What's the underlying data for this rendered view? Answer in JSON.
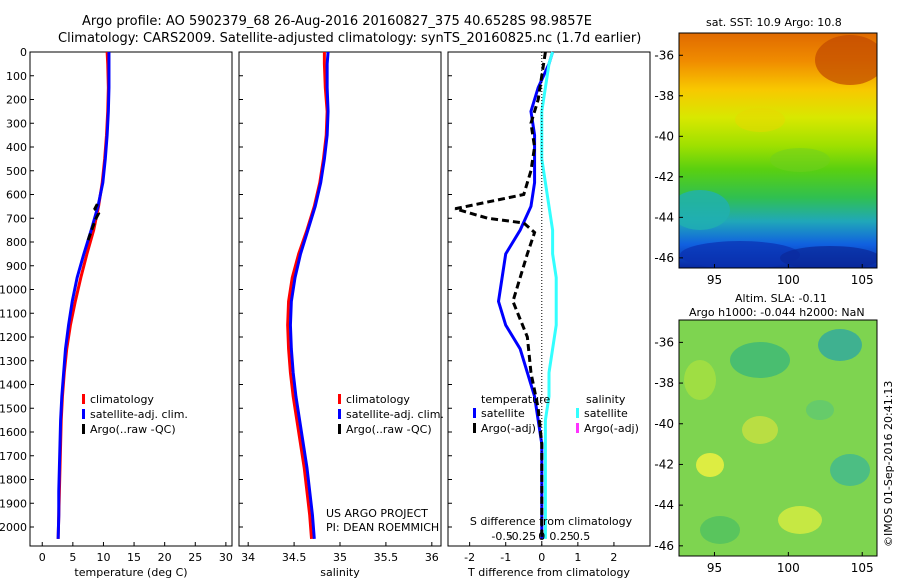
{
  "header": {
    "line1": "Argo profile: AO 5902379_68 26-Aug-2016 20160827_375 40.6528S 98.9857E",
    "line2": "Climatology: CARS2009. Satellite-adjusted climatology: synTS_20160825.nc (1.7d earlier)"
  },
  "colors": {
    "climatology": "#ff0000",
    "satellite": "#0000ff",
    "argo": "#000000",
    "salinity_satellite": "#33ffff",
    "salinity_argo": "#ff33ff"
  },
  "chart_data": [
    {
      "type": "line",
      "name": "temperature-profile",
      "xlabel": "temperature (deg C)",
      "xlim": [
        -2,
        31
      ],
      "xticks": [
        0,
        5,
        10,
        15,
        20,
        25,
        30
      ],
      "ylim": [
        2080,
        0
      ],
      "yticks": [
        0,
        100,
        200,
        300,
        400,
        500,
        600,
        700,
        800,
        900,
        1000,
        1100,
        1200,
        1300,
        1400,
        1500,
        1600,
        1700,
        1800,
        1900,
        2000
      ],
      "legend": [
        "climatology",
        "satellite-adj. clim.",
        "Argo(..raw -QC)"
      ],
      "series": [
        {
          "name": "climatology",
          "color": "#ff0000",
          "x": [
            10.6,
            10.7,
            10.8,
            10.7,
            10.5,
            10.2,
            9.8,
            9.2,
            8.4,
            7.3,
            6.3,
            5.4,
            4.6,
            4.0,
            3.6,
            3.3,
            3.1,
            3.0,
            2.9,
            2.8,
            2.7,
            2.6
          ],
          "y": [
            0,
            50,
            150,
            250,
            350,
            450,
            550,
            650,
            750,
            850,
            950,
            1050,
            1150,
            1250,
            1350,
            1450,
            1550,
            1650,
            1750,
            1850,
            1950,
            2050
          ]
        },
        {
          "name": "satellite-adj. clim.",
          "color": "#0000ff",
          "x": [
            10.9,
            10.9,
            10.9,
            10.8,
            10.6,
            10.3,
            9.9,
            9.1,
            8.0,
            6.8,
            5.7,
            4.9,
            4.3,
            3.8,
            3.5,
            3.2,
            3.0,
            2.9,
            2.8,
            2.7,
            2.7,
            2.6
          ],
          "y": [
            0,
            50,
            150,
            250,
            350,
            450,
            550,
            650,
            750,
            850,
            950,
            1050,
            1150,
            1250,
            1350,
            1450,
            1550,
            1650,
            1750,
            1850,
            1950,
            2050
          ]
        },
        {
          "name": "Argo(..raw -QC)",
          "color": "#000000",
          "x": [
            9.0,
            8.6,
            9.2,
            8.8,
            8.2,
            7.4
          ],
          "y": [
            640,
            660,
            680,
            700,
            740,
            800
          ]
        }
      ]
    },
    {
      "type": "line",
      "name": "salinity-profile",
      "xlabel": "salinity",
      "xlim": [
        33.9,
        36.1
      ],
      "xticks": [
        34,
        34.5,
        35,
        35.5,
        36
      ],
      "ylim": [
        2080,
        0
      ],
      "legend": [
        "climatology",
        "satellite-adj. clim.",
        "Argo(..raw -QC)"
      ],
      "series": [
        {
          "name": "climatology",
          "color": "#ff0000",
          "x": [
            34.83,
            34.83,
            34.84,
            34.86,
            34.85,
            34.82,
            34.78,
            34.72,
            34.64,
            34.55,
            34.48,
            34.44,
            34.43,
            34.44,
            34.46,
            34.49,
            34.53,
            34.57,
            34.61,
            34.64,
            34.67,
            34.69
          ],
          "y": [
            0,
            50,
            150,
            250,
            350,
            450,
            550,
            650,
            750,
            850,
            950,
            1050,
            1150,
            1250,
            1350,
            1450,
            1550,
            1650,
            1750,
            1850,
            1950,
            2050
          ]
        },
        {
          "name": "satellite-adj. clim.",
          "color": "#0000ff",
          "x": [
            34.87,
            34.86,
            34.86,
            34.87,
            34.86,
            34.83,
            34.79,
            34.73,
            34.65,
            34.57,
            34.51,
            34.47,
            34.46,
            34.47,
            34.49,
            34.52,
            34.56,
            34.6,
            34.64,
            34.67,
            34.7,
            34.72
          ],
          "y": [
            0,
            50,
            150,
            250,
            350,
            450,
            550,
            650,
            750,
            850,
            950,
            1050,
            1150,
            1250,
            1350,
            1450,
            1550,
            1650,
            1750,
            1850,
            1950,
            2050
          ]
        }
      ],
      "annotations": [
        "US ARGO PROJECT",
        "PI: DEAN ROEMMICH"
      ]
    },
    {
      "type": "line",
      "name": "difference-profile",
      "xlabel": "T difference from climatology",
      "x2label": "S difference from climatology",
      "xlim": [
        -2.6,
        3.0
      ],
      "xticks": [
        -2,
        -1,
        0,
        1,
        2
      ],
      "x2ticks": [
        "-0.5",
        "-0.25",
        "0",
        "0.25",
        "0.5"
      ],
      "ylim": [
        2080,
        0
      ],
      "legend_temperature": [
        "temperature",
        "satellite",
        "Argo(-adj)"
      ],
      "legend_salinity": [
        "salinity",
        "satellite",
        "Argo(-adj)"
      ],
      "series": [
        {
          "name": "temperature satellite",
          "color": "#0000ff",
          "x": [
            0.3,
            0.2,
            -0.1,
            -0.3,
            -0.2,
            -0.2,
            -0.2,
            -0.3,
            -0.6,
            -1.0,
            -1.1,
            -1.2,
            -1.0,
            -0.6,
            -0.4,
            -0.2,
            -0.1,
            0.0,
            0.0,
            0.0,
            0.0,
            0.0
          ],
          "y": [
            0,
            50,
            150,
            250,
            350,
            450,
            550,
            650,
            750,
            850,
            950,
            1050,
            1150,
            1250,
            1350,
            1450,
            1550,
            1650,
            1750,
            1850,
            1950,
            2050
          ]
        },
        {
          "name": "temperature Argo(-adj)",
          "color": "#000000",
          "x": [
            0.1,
            0.0,
            -0.1,
            -0.3,
            -0.2,
            -0.3,
            -0.5,
            -2.4,
            -1.5,
            -0.5,
            -0.2,
            -0.4,
            -0.6,
            -0.8,
            -0.4,
            -0.3,
            -0.1,
            0.0,
            0.0,
            0.0,
            0.0
          ],
          "y": [
            0,
            100,
            200,
            300,
            400,
            500,
            600,
            660,
            700,
            720,
            760,
            850,
            950,
            1050,
            1200,
            1350,
            1500,
            1650,
            1800,
            1950,
            2050
          ]
        },
        {
          "name": "salinity satellite",
          "color": "#33ffff",
          "x": [
            0.3,
            0.2,
            0.1,
            0.0,
            0.0,
            0.0,
            0.1,
            0.2,
            0.3,
            0.3,
            0.4,
            0.4,
            0.4,
            0.3,
            0.2,
            0.2,
            0.1,
            0.1,
            0.1,
            0.1,
            0.1,
            0.1
          ],
          "y": [
            0,
            50,
            150,
            250,
            350,
            450,
            550,
            650,
            750,
            850,
            950,
            1050,
            1150,
            1250,
            1350,
            1450,
            1550,
            1650,
            1750,
            1850,
            1950,
            2050
          ]
        }
      ]
    },
    {
      "type": "heatmap",
      "name": "sst-map",
      "title": "sat. SST: 10.9  Argo: 10.8",
      "xticks": [
        95,
        100,
        105
      ],
      "yticks": [
        -36,
        -38,
        -40,
        -42,
        -44,
        -46
      ]
    },
    {
      "type": "heatmap",
      "name": "sla-map",
      "title_line1": "Altim. SLA: -0.11",
      "title_line2": "Argo h1000: -0.044 h2000: NaN",
      "xticks": [
        95,
        100,
        105
      ],
      "yticks": [
        -36,
        -38,
        -40,
        -42,
        -44,
        -46
      ]
    }
  ],
  "watermark": "©IMOS 01-Sep-2016 20:41:13"
}
